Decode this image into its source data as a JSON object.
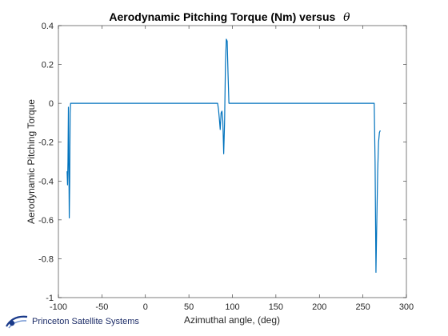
{
  "chart_data": {
    "type": "line",
    "title": "Aerodynamic Pitching Torque (Nm) versus",
    "title_symbol": "θ",
    "xlabel": "Azimuthal angle,  (deg)",
    "ylabel": "Aerodynamic Pitching Torque",
    "xlim": [
      -100,
      300
    ],
    "ylim": [
      -1,
      0.4
    ],
    "xticks": [
      -100,
      -50,
      0,
      50,
      100,
      150,
      200,
      250,
      300
    ],
    "yticks": [
      -1,
      -0.8,
      -0.6,
      -0.4,
      -0.2,
      0,
      0.2,
      0.4
    ],
    "xtick_labels": [
      "-100",
      "-50",
      "0",
      "50",
      "100",
      "150",
      "200",
      "250",
      "300"
    ],
    "ytick_labels": [
      "-1",
      "-0.8",
      "-0.6",
      "-0.4",
      "-0.2",
      "0",
      "0.2",
      "0.4"
    ],
    "grid": false,
    "line_color": "#0072bd",
    "series": [
      {
        "x": [
          -90,
          -89.5,
          -89,
          -88.5,
          -88,
          -87.5,
          -87,
          -86.5,
          -86,
          -85.5,
          -85,
          0,
          50,
          83,
          84,
          85,
          86,
          87,
          88,
          89,
          90,
          91,
          92,
          93,
          94,
          95,
          96,
          97,
          100,
          150,
          200,
          250,
          263,
          264,
          265,
          266,
          267,
          268,
          269,
          270
        ],
        "y": [
          -0.35,
          -0.42,
          -0.3,
          -0.02,
          -0.3,
          -0.59,
          -0.4,
          -0.05,
          0,
          0,
          0,
          0,
          0,
          0,
          -0.03,
          -0.08,
          -0.135,
          -0.05,
          -0.04,
          -0.09,
          -0.26,
          -0.1,
          0.2,
          0.33,
          0.32,
          0.15,
          0,
          0,
          0,
          0,
          0,
          0,
          0,
          -0.3,
          -0.87,
          -0.6,
          -0.35,
          -0.2,
          -0.15,
          -0.14
        ]
      }
    ]
  },
  "logo": {
    "text": "Princeton Satellite Systems"
  }
}
